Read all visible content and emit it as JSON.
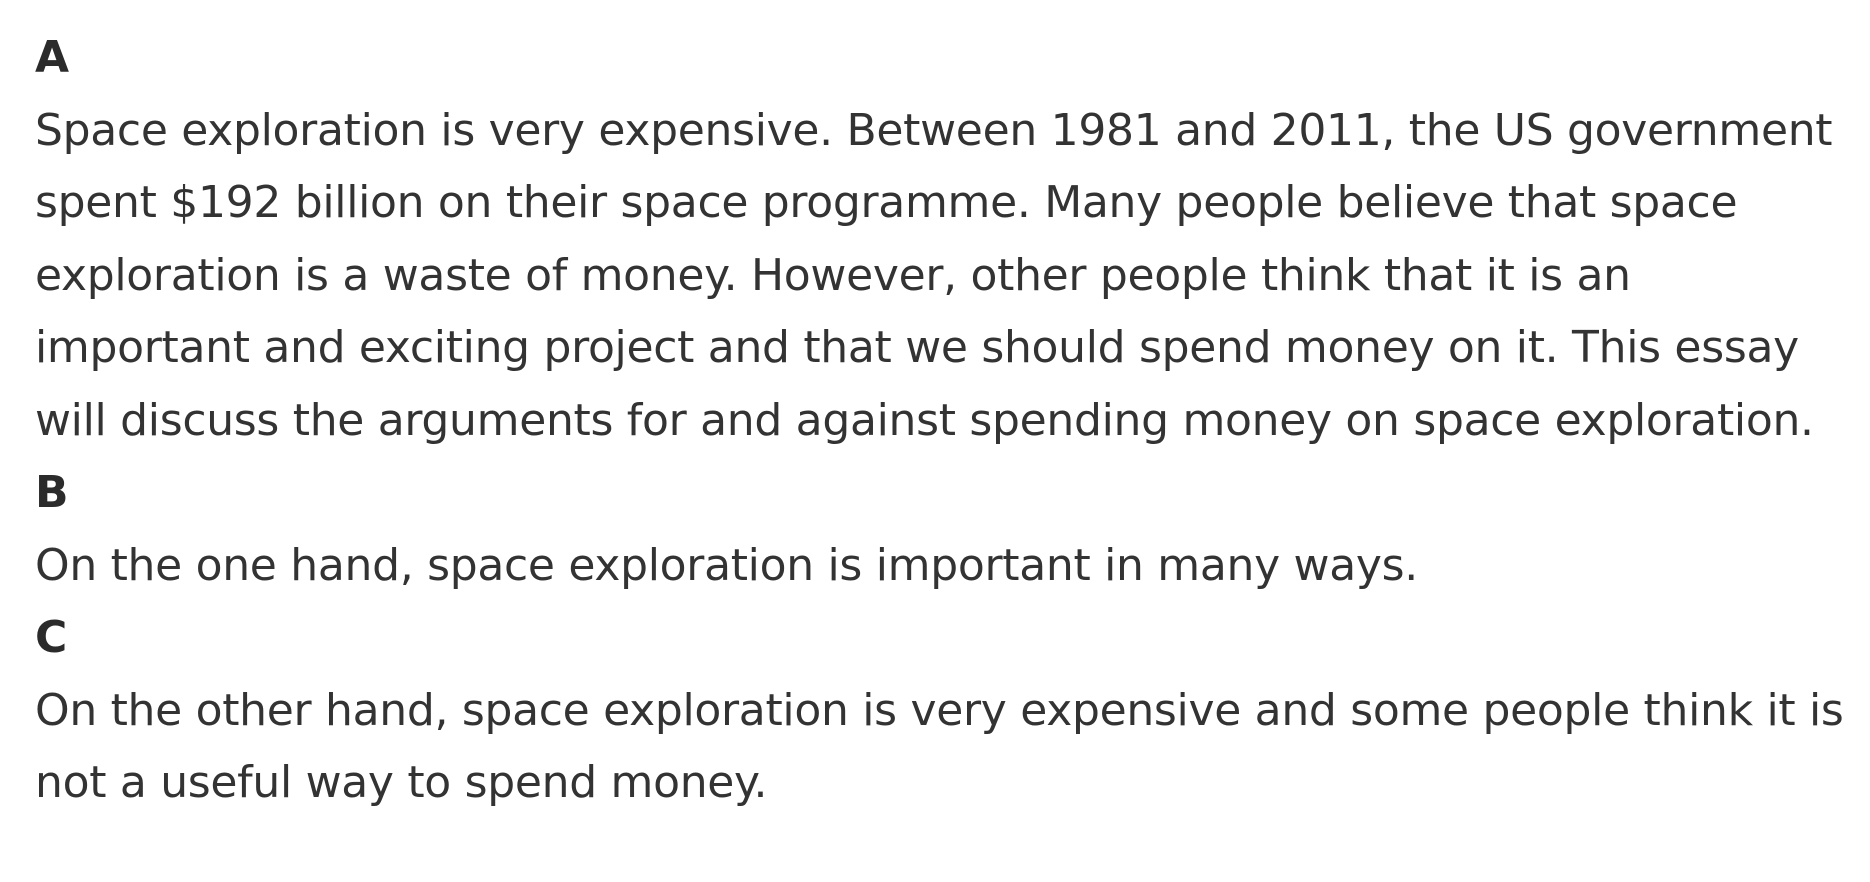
{
  "sections": [
    {
      "label": "A",
      "text": "Space exploration is very expensive. Between 1981 and 2011, the US government spent $192 billion on their space programme. Many people believe that space exploration is a waste of money. However, other people think that it is an important and exciting project and that we should spend money on it. This essay will discuss the arguments for and against spending money on space exploration."
    },
    {
      "label": "B",
      "text": "On the one hand, space exploration is important in many ways."
    },
    {
      "label": "C",
      "text": "On the other hand, space exploration is very expensive and some people think it is not a useful way to spend money."
    }
  ]
}
